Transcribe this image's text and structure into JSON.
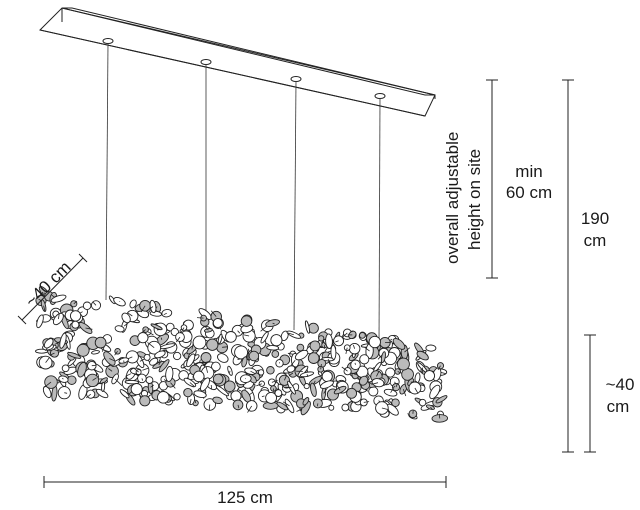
{
  "dimensions": {
    "width_label": "125 cm",
    "depth_label": "~40 cm",
    "min_label_line1": "min",
    "min_label_line2": "60 cm",
    "total_label_line1": "190",
    "total_label_line2": "cm",
    "body_label_line1": "~40",
    "body_label_line2": "cm",
    "adjustable_line1": "overall adjustable",
    "adjustable_line2": "height on site"
  },
  "colors": {
    "stroke": "#222222",
    "background": "#ffffff"
  }
}
